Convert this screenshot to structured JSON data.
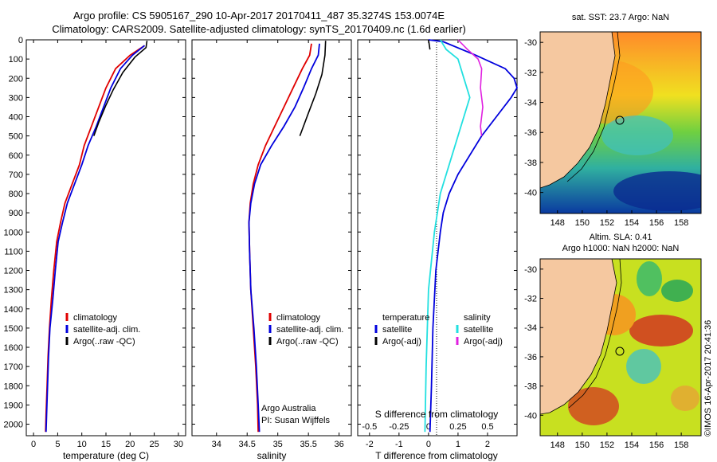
{
  "titles": {
    "line1": "Argo profile: CS 5905167_290 10-Apr-2017 20170411_487 35.3274S 153.0074E",
    "line2": "Climatology: CARS2009. Satellite-adjusted climatology: synTS_20170409.nc (1.6d earlier)"
  },
  "colors": {
    "climatology": "#e00000",
    "satellite": "#0000dd",
    "argo": "#000000",
    "sat_salinity": "#22e0e0",
    "argo_salinity": "#e020e0",
    "land": "#f5c8a0"
  },
  "chart_data": [
    {
      "type": "line",
      "id": "temperature",
      "xlabel": "temperature (deg C)",
      "ylabel": "",
      "xlim": [
        -1.5,
        31.5
      ],
      "ylim": [
        2060,
        0
      ],
      "xticks": [
        0,
        5,
        10,
        15,
        20,
        25,
        30
      ],
      "yticks": [
        0,
        100,
        200,
        300,
        400,
        500,
        600,
        700,
        800,
        900,
        1000,
        1100,
        1200,
        1300,
        1400,
        1500,
        1600,
        1700,
        1800,
        1900,
        2000
      ],
      "legend": [
        "climatology",
        "satellite-adj. clim.",
        "Argo(..raw -QC)"
      ],
      "series": [
        {
          "name": "climatology",
          "color": "#e00000",
          "x": [
            23,
            20,
            17,
            15,
            13.5,
            12,
            10.5,
            9.5,
            8,
            6.5,
            5.6,
            4.8,
            4.2,
            3.7,
            3.3,
            3.0,
            2.8,
            2.6,
            2.5
          ],
          "y": [
            30,
            80,
            150,
            250,
            350,
            450,
            550,
            650,
            750,
            850,
            950,
            1050,
            1200,
            1350,
            1500,
            1650,
            1800,
            1950,
            2040
          ]
        },
        {
          "name": "satellite-adj. clim.",
          "color": "#0000dd",
          "x": [
            23,
            20.5,
            18,
            16,
            14.5,
            13,
            11.3,
            10,
            8.5,
            7,
            6,
            5.1,
            4.5,
            4.0,
            3.4,
            3.1,
            2.9,
            2.7,
            2.6
          ],
          "y": [
            30,
            80,
            150,
            250,
            350,
            450,
            550,
            650,
            750,
            850,
            950,
            1050,
            1200,
            1350,
            1500,
            1650,
            1800,
            1950,
            2040
          ]
        },
        {
          "name": "Argo(..raw -QC)",
          "color": "#000000",
          "x": [
            23.5,
            23.3,
            21,
            18.5,
            16.5,
            15,
            13.5,
            12.5
          ],
          "y": [
            5,
            40,
            90,
            170,
            260,
            340,
            430,
            500
          ]
        }
      ]
    },
    {
      "type": "line",
      "id": "salinity",
      "xlabel": "salinity",
      "ylabel": "",
      "xlim": [
        33.6,
        36.2
      ],
      "ylim": [
        2060,
        0
      ],
      "xticks": [
        34,
        34.5,
        35,
        35.5,
        36
      ],
      "legend": [
        "climatology",
        "satellite-adj. clim.",
        "Argo(..raw -QC)"
      ],
      "annotation": [
        "Argo Australia",
        "PI: Susan Wijffels"
      ],
      "series": [
        {
          "name": "climatology",
          "color": "#e00000",
          "x": [
            35.55,
            35.52,
            35.4,
            35.25,
            35.1,
            34.95,
            34.8,
            34.68,
            34.6,
            34.55,
            34.53,
            34.54,
            34.56,
            34.6,
            34.64,
            34.67,
            34.68
          ],
          "y": [
            20,
            80,
            150,
            250,
            350,
            450,
            550,
            650,
            750,
            850,
            950,
            1100,
            1300,
            1500,
            1700,
            1900,
            2040
          ]
        },
        {
          "name": "satellite-adj. clim.",
          "color": "#0000dd",
          "x": [
            35.68,
            35.66,
            35.55,
            35.42,
            35.28,
            35.1,
            34.9,
            34.72,
            34.62,
            34.56,
            34.53,
            34.54,
            34.56,
            34.61,
            34.65,
            34.68,
            34.7
          ],
          "y": [
            20,
            80,
            150,
            250,
            350,
            450,
            550,
            650,
            750,
            850,
            950,
            1100,
            1300,
            1500,
            1700,
            1900,
            2040
          ]
        },
        {
          "name": "Argo(..raw -QC)",
          "color": "#000000",
          "x": [
            35.78,
            35.77,
            35.72,
            35.62,
            35.5,
            35.36
          ],
          "y": [
            5,
            80,
            180,
            280,
            380,
            500
          ]
        }
      ]
    },
    {
      "type": "line",
      "id": "difference",
      "xlabel": "T difference from climatology",
      "x2label": "S difference from climatology",
      "xlim": [
        -2.4,
        3.0
      ],
      "ylim": [
        2060,
        0
      ],
      "xticks": [
        -2,
        -1,
        0,
        1,
        2
      ],
      "x2ticks": [
        -0.5,
        -0.25,
        0,
        0.25,
        0.5
      ],
      "legend_left": {
        "header": "temperature",
        "items": [
          "satellite",
          "Argo(-adj)"
        ]
      },
      "legend_right": {
        "header": "salinity",
        "items": [
          "satellite",
          "Argo(-adj)"
        ]
      },
      "series": [
        {
          "name": "temperature satellite",
          "color": "#0000dd",
          "x": [
            0,
            0.5,
            1.6,
            2.6,
            2.9,
            3.0,
            2.8,
            2.3,
            1.8,
            1.4,
            1.0,
            0.7,
            0.5,
            0.4,
            0.25,
            0.15,
            0.1,
            0.05
          ],
          "y": [
            0,
            10,
            80,
            150,
            200,
            250,
            300,
            400,
            500,
            600,
            700,
            800,
            900,
            1000,
            1200,
            1500,
            1800,
            2040
          ]
        },
        {
          "name": "temperature Argo(-adj)",
          "color": "#000000",
          "x": [
            0,
            0.05
          ],
          "y": [
            0,
            50
          ]
        },
        {
          "name": "salinity satellite",
          "color": "#22e0e0",
          "x": [
            0.1,
            0.15,
            0.25,
            0.3,
            0.35,
            0.3,
            0.25,
            0.2,
            0.15,
            0.1,
            0.05,
            0.0,
            -0.02,
            -0.03
          ],
          "y": [
            0,
            50,
            100,
            200,
            300,
            400,
            500,
            600,
            700,
            800,
            1000,
            1300,
            1700,
            2040
          ]
        },
        {
          "name": "salinity Argo(-adj)",
          "color": "#e020e0",
          "x": [
            0.25,
            0.33,
            0.42,
            0.45,
            0.44,
            0.46,
            0.44,
            0.45
          ],
          "y": [
            0,
            50,
            100,
            150,
            250,
            350,
            450,
            500
          ]
        }
      ]
    }
  ],
  "maps": {
    "sst": {
      "title": "sat. SST: 23.7  Argo: NaN",
      "xticks": [
        148,
        150,
        152,
        154,
        156,
        158
      ],
      "yticks": [
        -30,
        -32,
        -34,
        -36,
        -38,
        -40
      ]
    },
    "sla": {
      "title1": "Altim. SLA: 0.41",
      "title2": "Argo h1000: NaN h2000: NaN",
      "xticks": [
        148,
        150,
        152,
        154,
        156,
        158
      ],
      "yticks": [
        -30,
        -32,
        -34,
        -36,
        -38,
        -40
      ]
    }
  },
  "credit": "©IMOS 16-Apr-2017 20:41:36"
}
